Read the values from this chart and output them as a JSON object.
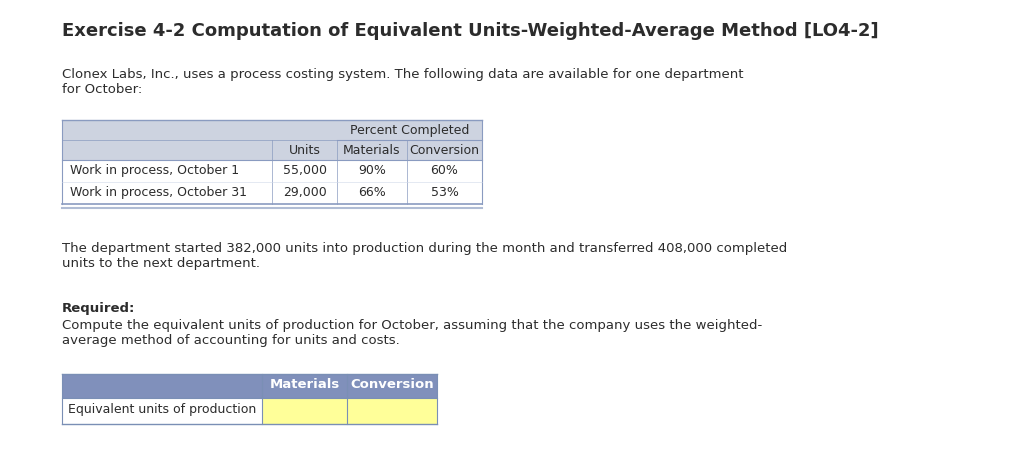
{
  "title": "Exercise 4-2 Computation of Equivalent Units-Weighted-Average Method [LO4-2]",
  "intro_text": "Clonex Labs, Inc., uses a process costing system. The following data are available for one department\nfor October:",
  "table1": {
    "header_row1_text": "Percent Completed",
    "header_row2": [
      "Units",
      "Materials",
      "Conversion"
    ],
    "rows": [
      [
        "Work in process, October 1",
        "55,000",
        "90%",
        "60%"
      ],
      [
        "Work in process, October 31",
        "29,000",
        "66%",
        "53%"
      ]
    ],
    "header_bg": "#cdd3e0",
    "table_bg": "#ffffff",
    "border_color": "#8a9bc0",
    "bottom_stripe_color": "#b0bcd4"
  },
  "middle_text": "The department started 382,000 units into production during the month and transferred 408,000 completed\nunits to the next department.",
  "required_label": "Required:",
  "required_text": "Compute the equivalent units of production for October, assuming that the company uses the weighted-\naverage method of accounting for units and costs.",
  "table2": {
    "headers": [
      "",
      "Materials",
      "Conversion"
    ],
    "rows": [
      [
        "Equivalent units of production",
        "",
        ""
      ]
    ],
    "header_bg": "#8090bb",
    "input_bg": "#ffff99",
    "row_bg": "#ffffff",
    "border_color": "#7a8fb5"
  },
  "bg_color": "#ffffff",
  "text_color": "#2c2c2c",
  "title_fontsize": 13,
  "body_fontsize": 9.5
}
